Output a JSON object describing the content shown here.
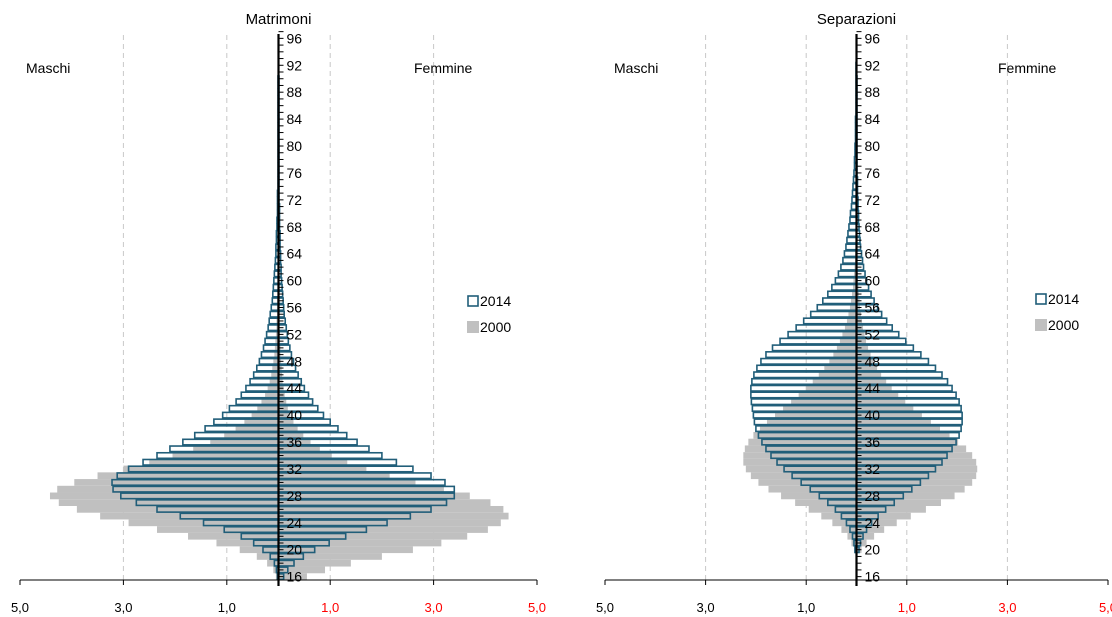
{
  "colors": {
    "bar_2014_stroke": "#215e79",
    "bar_2014_fill": "#ffffff",
    "bar_2000_fill": "#c0c0c0",
    "axis": "#000000",
    "grid": "#c8c8c8",
    "female_tick_labels": "#ff0000",
    "male_tick_labels": "#000000"
  },
  "chart_data": [
    {
      "type": "bar",
      "orientation": "horizontal-population-pyramid",
      "title": "Matrimoni",
      "left_label": "Maschi",
      "right_label": "Femmine",
      "legend": {
        "placement": "right-middle",
        "entries": [
          "2014",
          "2000"
        ]
      },
      "grid": true,
      "xlim": [
        -5,
        5
      ],
      "x_ticks": [
        {
          "value": -5,
          "label": "5,0",
          "side": "male"
        },
        {
          "value": -3,
          "label": "3,0",
          "side": "male"
        },
        {
          "value": -1,
          "label": "1,0",
          "side": "male"
        },
        {
          "value": 1,
          "label": "1,0",
          "side": "female"
        },
        {
          "value": 3,
          "label": "3,0",
          "side": "female"
        },
        {
          "value": 5,
          "label": "5,0",
          "side": "female"
        }
      ],
      "age_range": [
        16,
        97
      ],
      "age_ticks": [
        "16",
        "20",
        "24",
        "28",
        "32",
        "36",
        "40",
        "44",
        "48",
        "52",
        "56",
        "60",
        "64",
        "68",
        "72",
        "76",
        "80",
        "84",
        "88",
        "92",
        "96"
      ],
      "series": [
        {
          "name": "2014",
          "style": "outline",
          "male": {
            "16": 0.02,
            "17": 0.04,
            "18": 0.08,
            "19": 0.16,
            "20": 0.3,
            "21": 0.48,
            "22": 0.72,
            "23": 1.05,
            "24": 1.45,
            "25": 1.9,
            "26": 2.35,
            "27": 2.75,
            "28": 3.05,
            "29": 3.2,
            "30": 3.22,
            "31": 3.12,
            "32": 2.9,
            "33": 2.62,
            "34": 2.35,
            "35": 2.1,
            "36": 1.85,
            "37": 1.62,
            "38": 1.42,
            "39": 1.25,
            "40": 1.08,
            "41": 0.95,
            "42": 0.82,
            "43": 0.72,
            "44": 0.63,
            "45": 0.55,
            "46": 0.48,
            "47": 0.42,
            "48": 0.37,
            "49": 0.33,
            "50": 0.29,
            "51": 0.26,
            "52": 0.23,
            "53": 0.2,
            "54": 0.18,
            "55": 0.16,
            "56": 0.14,
            "57": 0.12,
            "58": 0.11,
            "59": 0.1,
            "60": 0.09,
            "61": 0.08,
            "62": 0.07,
            "63": 0.06,
            "64": 0.05,
            "65": 0.05,
            "66": 0.04,
            "67": 0.04,
            "68": 0.03,
            "69": 0.03,
            "70": 0.02,
            "71": 0.02,
            "72": 0.02,
            "73": 0.02,
            "74": 0.01,
            "75": 0.01,
            "76": 0.01,
            "77": 0.01,
            "78": 0.01,
            "79": 0.01,
            "80": 0.01,
            "81": 0.01,
            "82": 0.01,
            "83": 0.01,
            "84": 0.01,
            "85": 0.01,
            "86": 0.01,
            "87": 0.01,
            "88": 0.01,
            "89": 0.01,
            "90": 0.01
          },
          "female": {
            "16": 0.1,
            "17": 0.18,
            "18": 0.3,
            "19": 0.48,
            "20": 0.7,
            "21": 0.98,
            "22": 1.3,
            "23": 1.7,
            "24": 2.1,
            "25": 2.55,
            "26": 2.95,
            "27": 3.25,
            "28": 3.4,
            "29": 3.4,
            "30": 3.22,
            "31": 2.95,
            "32": 2.6,
            "33": 2.28,
            "34": 2.0,
            "35": 1.75,
            "36": 1.52,
            "37": 1.32,
            "38": 1.15,
            "39": 1.0,
            "40": 0.87,
            "41": 0.76,
            "42": 0.66,
            "43": 0.58,
            "44": 0.5,
            "45": 0.44,
            "46": 0.38,
            "47": 0.33,
            "48": 0.29,
            "49": 0.25,
            "50": 0.22,
            "51": 0.19,
            "52": 0.17,
            "53": 0.15,
            "54": 0.13,
            "55": 0.11,
            "56": 0.1,
            "57": 0.09,
            "58": 0.08,
            "59": 0.07,
            "60": 0.06,
            "61": 0.05,
            "62": 0.05,
            "63": 0.04,
            "64": 0.04,
            "65": 0.03,
            "66": 0.03,
            "67": 0.03,
            "68": 0.02,
            "69": 0.02,
            "70": 0.02,
            "71": 0.02,
            "72": 0.01,
            "73": 0.01,
            "74": 0.01,
            "75": 0.01,
            "76": 0.01,
            "77": 0.01,
            "78": 0.01,
            "79": 0.01,
            "80": 0.01,
            "81": 0.01,
            "82": 0.01,
            "83": 0.01,
            "84": 0.01,
            "85": 0.01,
            "86": 0.01,
            "87": 0.01,
            "88": 0.01,
            "89": 0.01,
            "90": 0.01
          }
        },
        {
          "name": "2000",
          "style": "filled",
          "male": {
            "16": 0.05,
            "17": 0.1,
            "18": 0.22,
            "19": 0.42,
            "20": 0.75,
            "21": 1.2,
            "22": 1.75,
            "23": 2.35,
            "24": 2.9,
            "25": 3.45,
            "26": 3.9,
            "27": 4.25,
            "28": 4.42,
            "29": 4.28,
            "30": 3.95,
            "31": 3.5,
            "32": 3.0,
            "33": 2.5,
            "34": 2.05,
            "35": 1.65,
            "36": 1.32,
            "37": 1.05,
            "38": 0.83,
            "39": 0.66,
            "40": 0.52,
            "41": 0.41,
            "42": 0.33,
            "43": 0.26,
            "44": 0.21,
            "45": 0.17,
            "46": 0.14,
            "47": 0.12,
            "48": 0.1,
            "49": 0.08,
            "50": 0.07,
            "51": 0.06,
            "52": 0.05,
            "53": 0.04,
            "54": 0.04,
            "55": 0.03,
            "56": 0.03,
            "57": 0.03,
            "58": 0.02,
            "59": 0.02,
            "60": 0.02,
            "61": 0.02,
            "62": 0.02,
            "63": 0.01,
            "64": 0.01,
            "65": 0.01,
            "66": 0.01,
            "67": 0.01,
            "68": 0.01,
            "69": 0.01,
            "70": 0.01
          },
          "female": {
            "16": 0.55,
            "17": 0.9,
            "18": 1.4,
            "19": 2.0,
            "20": 2.6,
            "21": 3.15,
            "22": 3.65,
            "23": 4.05,
            "24": 4.3,
            "25": 4.45,
            "26": 4.35,
            "27": 4.1,
            "28": 3.7,
            "29": 3.2,
            "30": 2.65,
            "31": 2.15,
            "32": 1.7,
            "33": 1.33,
            "34": 1.03,
            "35": 0.8,
            "36": 0.62,
            "37": 0.48,
            "38": 0.37,
            "39": 0.29,
            "40": 0.23,
            "41": 0.18,
            "42": 0.15,
            "43": 0.12,
            "44": 0.1,
            "45": 0.08,
            "46": 0.07,
            "47": 0.06,
            "48": 0.05,
            "49": 0.04,
            "50": 0.04,
            "51": 0.03,
            "52": 0.03,
            "53": 0.02,
            "54": 0.02,
            "55": 0.02,
            "56": 0.02,
            "57": 0.01,
            "58": 0.01,
            "59": 0.01,
            "60": 0.01,
            "61": 0.01,
            "62": 0.01,
            "63": 0.01,
            "64": 0.01,
            "65": 0.01,
            "66": 0.01,
            "67": 0.01,
            "68": 0.01,
            "69": 0.01,
            "70": 0.01
          }
        }
      ]
    },
    {
      "type": "bar",
      "orientation": "horizontal-population-pyramid",
      "title": "Separazioni",
      "left_label": "Maschi",
      "right_label": "Femmine",
      "legend": {
        "placement": "right-middle",
        "entries": [
          "2014",
          "2000"
        ]
      },
      "grid": true,
      "xlim": [
        -5,
        5
      ],
      "x_ticks": [
        {
          "value": -5,
          "label": "5,0",
          "side": "male"
        },
        {
          "value": -3,
          "label": "3,0",
          "side": "male"
        },
        {
          "value": -1,
          "label": "1,0",
          "side": "male"
        },
        {
          "value": 1,
          "label": "1,0",
          "side": "female"
        },
        {
          "value": 3,
          "label": "3,0",
          "side": "female"
        },
        {
          "value": 5,
          "label": "5,0",
          "side": "female"
        }
      ],
      "age_range": [
        16,
        97
      ],
      "age_ticks": [
        "16",
        "20",
        "24",
        "28",
        "32",
        "36",
        "40",
        "44",
        "48",
        "52",
        "56",
        "60",
        "64",
        "68",
        "72",
        "76",
        "80",
        "84",
        "88",
        "92",
        "96"
      ],
      "series": [
        {
          "name": "2014",
          "style": "outline",
          "male": {
            "20": 0.03,
            "21": 0.05,
            "22": 0.08,
            "23": 0.13,
            "24": 0.2,
            "25": 0.3,
            "26": 0.42,
            "27": 0.57,
            "28": 0.74,
            "29": 0.92,
            "30": 1.1,
            "31": 1.28,
            "32": 1.44,
            "33": 1.58,
            "34": 1.7,
            "35": 1.8,
            "36": 1.88,
            "37": 1.95,
            "38": 2.0,
            "39": 2.03,
            "40": 2.05,
            "41": 2.07,
            "42": 2.09,
            "43": 2.1,
            "44": 2.1,
            "45": 2.08,
            "46": 2.04,
            "47": 1.98,
            "48": 1.9,
            "49": 1.8,
            "50": 1.67,
            "51": 1.52,
            "52": 1.36,
            "53": 1.2,
            "54": 1.05,
            "55": 0.91,
            "56": 0.78,
            "57": 0.67,
            "58": 0.57,
            "59": 0.49,
            "60": 0.42,
            "61": 0.36,
            "62": 0.31,
            "63": 0.27,
            "64": 0.24,
            "65": 0.21,
            "66": 0.19,
            "67": 0.17,
            "68": 0.15,
            "69": 0.13,
            "70": 0.12,
            "71": 0.1,
            "72": 0.09,
            "73": 0.08,
            "74": 0.07,
            "75": 0.06,
            "76": 0.05,
            "77": 0.04,
            "78": 0.04,
            "79": 0.03,
            "80": 0.03,
            "81": 0.02,
            "82": 0.02,
            "83": 0.02,
            "84": 0.02,
            "85": 0.01,
            "86": 0.01,
            "87": 0.01,
            "88": 0.01,
            "89": 0.01,
            "90": 0.01,
            "91": 0.01,
            "92": 0.01
          },
          "female": {
            "20": 0.05,
            "21": 0.08,
            "22": 0.13,
            "23": 0.2,
            "24": 0.3,
            "25": 0.43,
            "26": 0.58,
            "27": 0.75,
            "28": 0.93,
            "29": 1.1,
            "30": 1.27,
            "31": 1.43,
            "32": 1.57,
            "33": 1.7,
            "34": 1.8,
            "35": 1.9,
            "36": 1.98,
            "37": 2.04,
            "38": 2.08,
            "39": 2.1,
            "40": 2.1,
            "41": 2.08,
            "42": 2.04,
            "43": 1.98,
            "44": 1.9,
            "45": 1.81,
            "46": 1.7,
            "47": 1.57,
            "48": 1.43,
            "49": 1.28,
            "50": 1.13,
            "51": 0.98,
            "52": 0.84,
            "53": 0.71,
            "54": 0.6,
            "55": 0.5,
            "56": 0.42,
            "57": 0.35,
            "58": 0.29,
            "59": 0.24,
            "60": 0.2,
            "61": 0.17,
            "62": 0.14,
            "63": 0.12,
            "64": 0.1,
            "65": 0.08,
            "66": 0.07,
            "67": 0.06,
            "68": 0.05,
            "69": 0.04,
            "70": 0.04,
            "71": 0.03,
            "72": 0.03,
            "73": 0.02,
            "74": 0.02,
            "75": 0.02,
            "76": 0.01,
            "77": 0.01,
            "78": 0.01,
            "79": 0.01,
            "80": 0.01,
            "81": 0.01,
            "82": 0.01,
            "83": 0.01,
            "84": 0.01,
            "85": 0.01,
            "86": 0.01,
            "87": 0.01,
            "88": 0.01,
            "89": 0.01,
            "90": 0.01
          }
        },
        {
          "name": "2000",
          "style": "filled",
          "male": {
            "20": 0.05,
            "21": 0.1,
            "22": 0.18,
            "23": 0.3,
            "24": 0.48,
            "25": 0.7,
            "26": 0.95,
            "27": 1.22,
            "28": 1.5,
            "29": 1.75,
            "30": 1.95,
            "31": 2.1,
            "32": 2.2,
            "33": 2.25,
            "34": 2.25,
            "35": 2.22,
            "36": 2.15,
            "37": 2.05,
            "38": 1.92,
            "39": 1.78,
            "40": 1.62,
            "41": 1.46,
            "42": 1.3,
            "43": 1.15,
            "44": 1.0,
            "45": 0.87,
            "46": 0.75,
            "47": 0.64,
            "48": 0.54,
            "49": 0.46,
            "50": 0.39,
            "51": 0.33,
            "52": 0.28,
            "53": 0.23,
            "54": 0.19,
            "55": 0.16,
            "56": 0.13,
            "57": 0.11,
            "58": 0.09,
            "59": 0.07,
            "60": 0.06,
            "61": 0.05,
            "62": 0.04,
            "63": 0.03,
            "64": 0.03,
            "65": 0.02,
            "66": 0.02,
            "67": 0.01,
            "68": 0.01,
            "69": 0.01,
            "70": 0.01
          },
          "female": {
            "20": 0.1,
            "21": 0.2,
            "22": 0.35,
            "23": 0.55,
            "24": 0.8,
            "25": 1.08,
            "26": 1.38,
            "27": 1.68,
            "28": 1.95,
            "29": 2.15,
            "30": 2.3,
            "31": 2.38,
            "32": 2.4,
            "33": 2.38,
            "34": 2.3,
            "35": 2.18,
            "36": 2.02,
            "37": 1.85,
            "38": 1.66,
            "39": 1.48,
            "40": 1.3,
            "41": 1.13,
            "42": 0.97,
            "43": 0.83,
            "44": 0.7,
            "45": 0.59,
            "46": 0.49,
            "47": 0.41,
            "48": 0.34,
            "49": 0.28,
            "50": 0.23,
            "51": 0.19,
            "52": 0.16,
            "53": 0.13,
            "54": 0.11,
            "55": 0.09,
            "56": 0.07,
            "57": 0.06,
            "58": 0.05,
            "59": 0.04,
            "60": 0.03,
            "61": 0.03,
            "62": 0.02,
            "63": 0.02,
            "64": 0.01,
            "65": 0.01,
            "66": 0.01,
            "67": 0.01,
            "68": 0.01,
            "69": 0.01,
            "70": 0.01
          }
        }
      ]
    }
  ]
}
